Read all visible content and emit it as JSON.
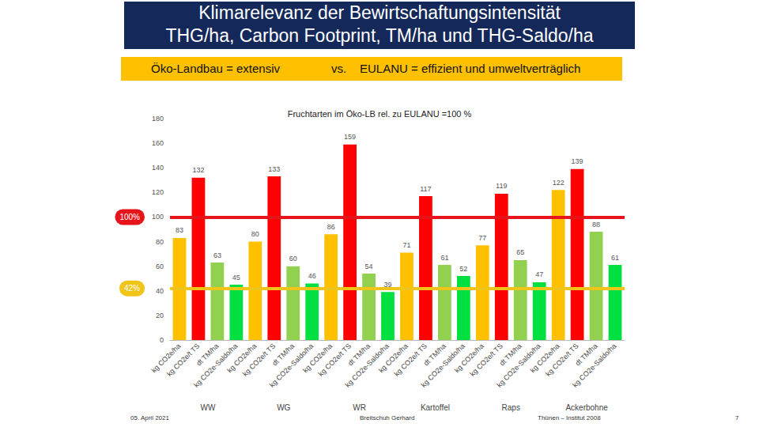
{
  "slide": {
    "title_lines": [
      "Klimarelevanz der Bewirtschaftungsintensität",
      "THG/ha, Carbon Footprint, TM/ha und THG-Saldo/ha"
    ],
    "banner": {
      "left": "Öko-Landbau = extensiv",
      "middle": "vs.",
      "right": "EULANU = effizient und umweltverträglich"
    },
    "footer": {
      "date": "05. April 2021",
      "author": "Breitschuh Gerhard",
      "institute": "Thünen – Institut 2008",
      "page": "7"
    }
  },
  "chart_data": {
    "type": "bar",
    "title": "Fruchtarten im Öko-LB rel. zu EULANU =100 %",
    "categories": [
      "kg CO2e/ha",
      "kg CO2e/t TS",
      "dt TM/ha",
      "kg CO2e-Saldo/ha",
      "kg CO2e/ha",
      "kg CO2e/t TS",
      "dt TM/ha",
      "kg CO2e-Saldo/ha",
      "kg CO2e/ha",
      "kg CO2e/t TS",
      "dt TM/ha",
      "kg CO2e-Saldo/ha",
      "kg CO2e/ha",
      "kg CO2e/t TS",
      "dt TM/ha",
      "kg CO2e-Saldo/ha",
      "kg CO2e/ha",
      "kg CO2e/t TS",
      "dt TM/ha",
      "kg CO2e-Saldo/ha",
      "kg CO2e/ha",
      "kg CO2e/t TS",
      "dt TM/ha",
      "kg CO2e-Saldo/ha"
    ],
    "groups": [
      "WW",
      "WG",
      "WR",
      "Kartoffel",
      "Raps",
      "Ackerbohne"
    ],
    "values": [
      83,
      132,
      63,
      45,
      80,
      133,
      60,
      46,
      86,
      159,
      54,
      39,
      71,
      117,
      61,
      52,
      77,
      119,
      65,
      47,
      122,
      139,
      88,
      61
    ],
    "colors": [
      "#ffc000",
      "#ff0000",
      "#92d050",
      "#00e040",
      "#ffc000",
      "#ff0000",
      "#92d050",
      "#00e040",
      "#ffc000",
      "#ff0000",
      "#92d050",
      "#00e040",
      "#ffc000",
      "#ff0000",
      "#92d050",
      "#00e040",
      "#ffc000",
      "#ff0000",
      "#92d050",
      "#00e040",
      "#ffc000",
      "#ff0000",
      "#92d050",
      "#00e040"
    ],
    "data_labels": true,
    "ylim": [
      0,
      180
    ],
    "yticks": [
      0,
      20,
      40,
      60,
      80,
      100,
      120,
      140,
      160,
      180
    ],
    "grid": false,
    "annotations": [
      {
        "value": 100,
        "label": "100%",
        "color": "#e8141b"
      },
      {
        "value": 42,
        "label": "42%",
        "color": "#f0c419"
      }
    ]
  }
}
